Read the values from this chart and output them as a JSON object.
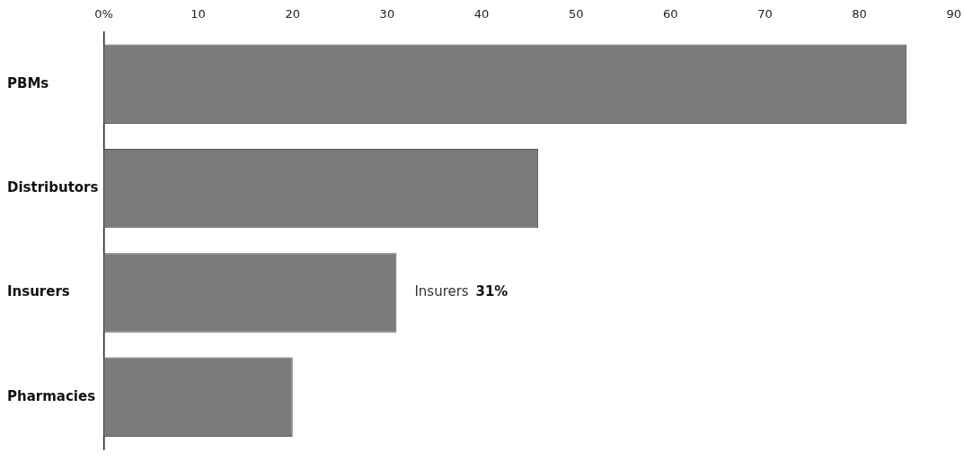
{
  "chart_data": {
    "type": "bar",
    "orientation": "horizontal",
    "categories": [
      "PBMs",
      "Distributors",
      "Insurers",
      "Pharmacies"
    ],
    "values": [
      85,
      46,
      31,
      20
    ],
    "color": "#7b7b7b",
    "xlim": [
      0,
      90
    ],
    "xticks": [
      {
        "value": 0,
        "label": "0%"
      },
      10,
      20,
      30,
      40,
      50,
      60,
      70,
      80,
      90
    ],
    "grid": false,
    "legend": false,
    "annotations": [
      {
        "text": "Insurers 31%",
        "x": 31,
        "y": "Insurers"
      }
    ]
  }
}
